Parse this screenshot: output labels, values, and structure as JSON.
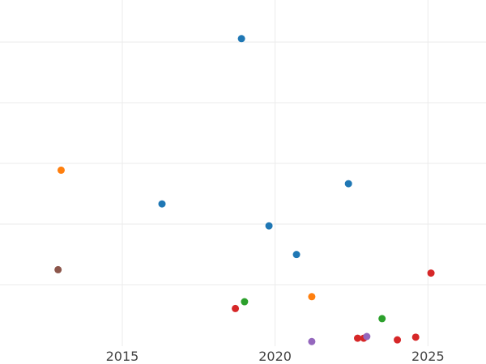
{
  "chart_data": {
    "type": "scatter",
    "title": "",
    "xlabel": "",
    "ylabel": "",
    "xlim": [
      2011.0,
      2026.9
    ],
    "ylim": [
      0,
      1
    ],
    "x_ticks": [
      2015,
      2020,
      2025
    ],
    "x_tick_labels": [
      "2015",
      "2020",
      "2025"
    ],
    "grid": true,
    "legend": "none",
    "y_tick_labels_shown": false,
    "points": [
      {
        "x": 2018.9,
        "y": 0.895,
        "color": "#1f77b4"
      },
      {
        "x": 2016.3,
        "y": 0.405,
        "color": "#1f77b4"
      },
      {
        "x": 2019.8,
        "y": 0.34,
        "color": "#1f77b4"
      },
      {
        "x": 2020.7,
        "y": 0.255,
        "color": "#1f77b4"
      },
      {
        "x": 2022.4,
        "y": 0.465,
        "color": "#1f77b4"
      },
      {
        "x": 2013.0,
        "y": 0.505,
        "color": "#ff7f0e"
      },
      {
        "x": 2021.2,
        "y": 0.13,
        "color": "#ff7f0e"
      },
      {
        "x": 2019.0,
        "y": 0.115,
        "color": "#2ca02c"
      },
      {
        "x": 2023.5,
        "y": 0.065,
        "color": "#2ca02c"
      },
      {
        "x": 2018.7,
        "y": 0.095,
        "color": "#d62728"
      },
      {
        "x": 2022.7,
        "y": 0.007,
        "color": "#d62728"
      },
      {
        "x": 2022.9,
        "y": 0.007,
        "color": "#d62728"
      },
      {
        "x": 2024.0,
        "y": 0.002,
        "color": "#d62728"
      },
      {
        "x": 2024.6,
        "y": 0.01,
        "color": "#d62728"
      },
      {
        "x": 2025.1,
        "y": 0.2,
        "color": "#d62728"
      },
      {
        "x": 2023.0,
        "y": 0.012,
        "color": "#9467bd"
      },
      {
        "x": 2021.2,
        "y": -0.003,
        "color": "#9467bd"
      },
      {
        "x": 2012.9,
        "y": 0.21,
        "color": "#8c564b"
      }
    ],
    "y_gridlines": [
      0.2,
      0.4,
      0.6,
      0.8,
      1.0
    ]
  }
}
